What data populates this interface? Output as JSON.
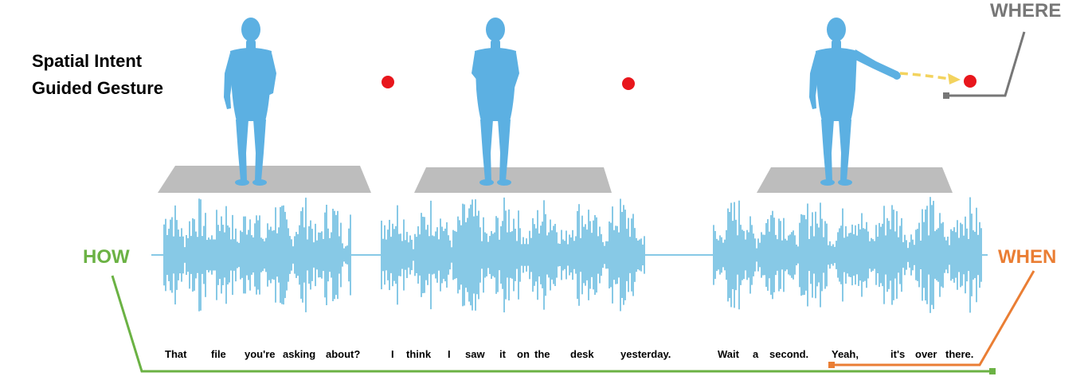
{
  "title": {
    "line1": "Spatial Intent",
    "line2": "Guided Gesture"
  },
  "labels": {
    "where": "WHERE",
    "how": "HOW",
    "when": "WHEN"
  },
  "transcript": {
    "words": [
      "That",
      "file",
      "you're",
      "asking",
      "about?",
      "I",
      "think",
      "I",
      "saw",
      "it",
      "on",
      "the",
      "desk",
      "yesterday.",
      "Wait",
      "a",
      "second.",
      "Yeah,",
      "it's",
      "over",
      "there."
    ]
  },
  "colors": {
    "figure": "#5cb0e2",
    "waveform": "#87c9e6",
    "floor": "#bdbdbd",
    "target": "#e8161c",
    "pointing_arrow": "#f3d35e",
    "where": "#777777",
    "how": "#6bb244",
    "when": "#ea7e34"
  }
}
